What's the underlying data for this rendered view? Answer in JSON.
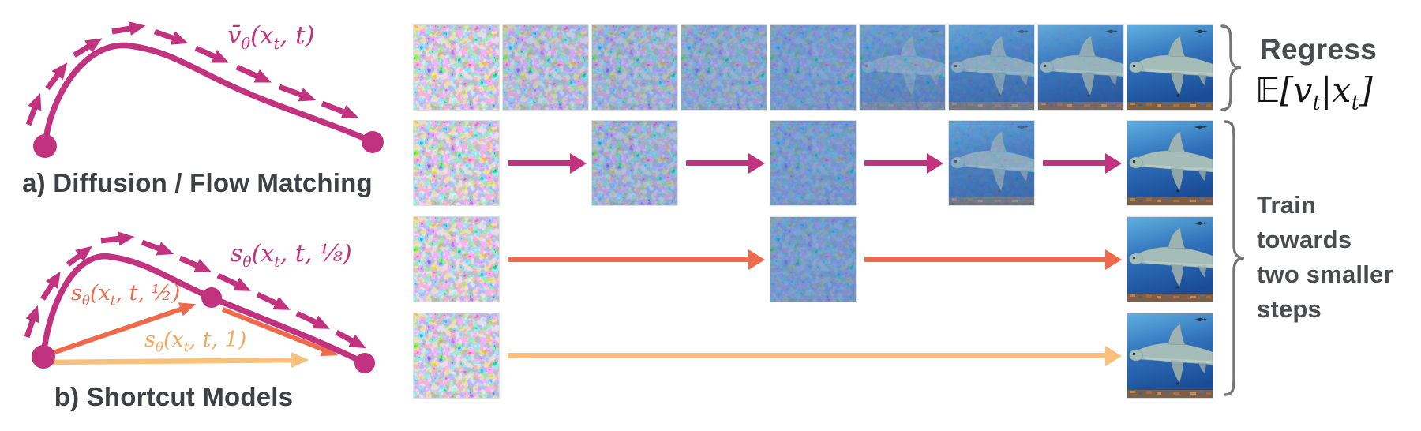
{
  "panel_a": {
    "caption": "a) Diffusion / Flow Matching",
    "velocity_label": "v̄_{θ}(x_{t}, t)"
  },
  "panel_b": {
    "caption": "b) Shortcut Models",
    "label_eighth": "s_{θ}(x_{t}, t, ⅛)",
    "label_half": "s_{θ}(x_{t}, t, ½)",
    "label_one": "s_{θ}(x_{t}, t, 1)"
  },
  "annotations": {
    "regress_title": "Regress",
    "regress_math": "𝔼[v_{t}|x_{t}]",
    "train_lines": [
      "Train",
      "towards",
      "two smaller",
      "steps"
    ]
  },
  "colors": {
    "magenta": "#c1327f",
    "coral": "#ed6a4c",
    "amber": "#f8c07a",
    "label_one_orange": "#f3a85a",
    "text_dark": "#4b4c4e",
    "caption_gray": "#3f4043",
    "brace_gray": "#75767a",
    "tint_blue": "#3b79c2"
  },
  "pipeline": {
    "columns": 9,
    "description": "denoising from noise (left) to shark image (right)",
    "rows": [
      {
        "name": "row-regress",
        "arrow_color": null,
        "frames": [
          {
            "col": 0,
            "noise": 1,
            "tint": 0
          },
          {
            "col": 1,
            "noise": 1,
            "tint": 0.18
          },
          {
            "col": 2,
            "noise": 1,
            "tint": 0.32
          },
          {
            "col": 3,
            "noise": 0.97,
            "tint": 0.45
          },
          {
            "col": 4,
            "noise": 0.9,
            "tint": 0.55
          },
          {
            "col": 5,
            "noise": 0.5,
            "tint": 0.45
          },
          {
            "col": 6,
            "noise": 0.22,
            "tint": 0.3
          },
          {
            "col": 7,
            "noise": 0.08,
            "tint": 0.15
          },
          {
            "col": 8,
            "noise": 0,
            "tint": 0
          }
        ]
      },
      {
        "name": "row-four-steps",
        "arrow_color": "#c1327f",
        "frames": [
          {
            "col": 0,
            "noise": 1,
            "tint": 0
          },
          {
            "col": 2,
            "noise": 1,
            "tint": 0.32
          },
          {
            "col": 4,
            "noise": 0.9,
            "tint": 0.55
          },
          {
            "col": 6,
            "noise": 0.22,
            "tint": 0.3
          },
          {
            "col": 8,
            "noise": 0,
            "tint": 0
          }
        ]
      },
      {
        "name": "row-two-steps",
        "arrow_color": "#ed6a4c",
        "frames": [
          {
            "col": 0,
            "noise": 1,
            "tint": 0
          },
          {
            "col": 4,
            "noise": 0.9,
            "tint": 0.55
          },
          {
            "col": 8,
            "noise": 0,
            "tint": 0
          }
        ]
      },
      {
        "name": "row-one-step",
        "arrow_color": "#f8c07a",
        "frames": [
          {
            "col": 0,
            "noise": 1,
            "tint": 0
          },
          {
            "col": 8,
            "noise": 0,
            "tint": 0
          }
        ]
      }
    ]
  }
}
